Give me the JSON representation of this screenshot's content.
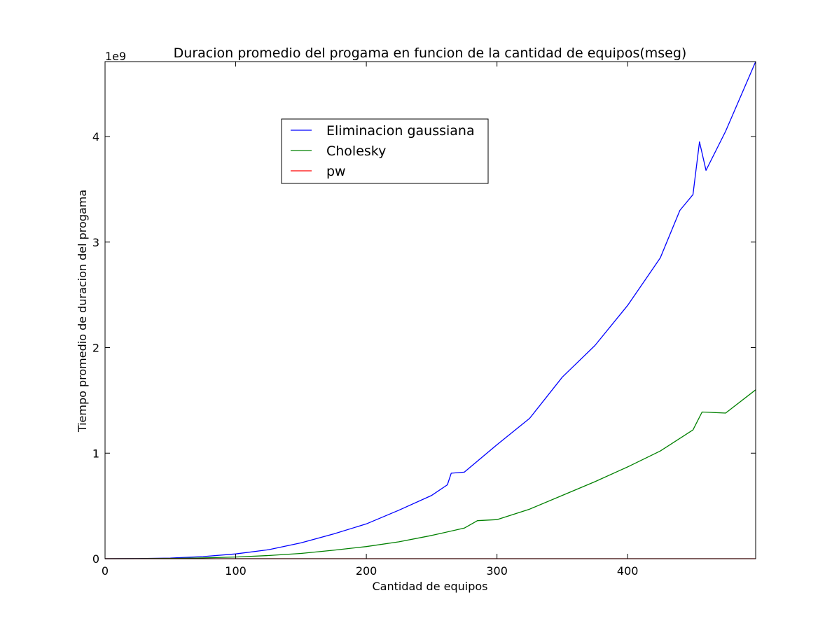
{
  "chart_data": {
    "type": "line",
    "title": "Duracion promedio del progama en funcion de la cantidad de equipos(mseg)",
    "xlabel": "Cantidad de equipos",
    "ylabel": "Tiempo promedio de duracion del progama",
    "y_offset_label": "1e9",
    "y_scale_factor": 1000000000,
    "xlim": [
      0,
      498
    ],
    "ylim": [
      0,
      4.71
    ],
    "xticks": [
      0,
      100,
      200,
      300,
      400
    ],
    "yticks": [
      0,
      1,
      2,
      3,
      4
    ],
    "grid": false,
    "legend_position": "upper center",
    "series": [
      {
        "name": "Eliminacion gaussiana",
        "color": "#0000ff",
        "x": [
          0,
          25,
          50,
          75,
          100,
          125,
          150,
          175,
          200,
          225,
          250,
          262,
          265,
          275,
          300,
          325,
          350,
          375,
          400,
          425,
          440,
          450,
          455,
          460,
          475,
          498
        ],
        "y": [
          0,
          0.001,
          0.006,
          0.02,
          0.045,
          0.085,
          0.15,
          0.235,
          0.33,
          0.46,
          0.6,
          0.7,
          0.81,
          0.82,
          1.08,
          1.33,
          1.72,
          2.02,
          2.4,
          2.85,
          3.3,
          3.45,
          3.95,
          3.68,
          4.05,
          4.71
        ]
      },
      {
        "name": "Cholesky",
        "color": "#008000",
        "x": [
          0,
          25,
          50,
          75,
          100,
          125,
          150,
          175,
          200,
          225,
          250,
          275,
          285,
          300,
          325,
          350,
          375,
          400,
          425,
          450,
          457,
          475,
          498
        ],
        "y": [
          0,
          0.0005,
          0.002,
          0.007,
          0.016,
          0.03,
          0.05,
          0.08,
          0.115,
          0.16,
          0.22,
          0.29,
          0.36,
          0.37,
          0.47,
          0.6,
          0.73,
          0.87,
          1.02,
          1.22,
          1.39,
          1.38,
          1.6
        ]
      },
      {
        "name": "pw",
        "color": "#ff0000",
        "x": [
          0,
          498
        ],
        "y": [
          0,
          0
        ]
      }
    ]
  }
}
